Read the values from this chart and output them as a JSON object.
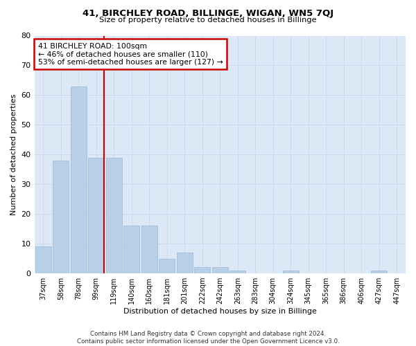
{
  "title1": "41, BIRCHLEY ROAD, BILLINGE, WIGAN, WN5 7QJ",
  "title2": "Size of property relative to detached houses in Billinge",
  "xlabel": "Distribution of detached houses by size in Billinge",
  "ylabel": "Number of detached properties",
  "categories": [
    "37sqm",
    "58sqm",
    "78sqm",
    "99sqm",
    "119sqm",
    "140sqm",
    "160sqm",
    "181sqm",
    "201sqm",
    "222sqm",
    "242sqm",
    "263sqm",
    "283sqm",
    "304sqm",
    "324sqm",
    "345sqm",
    "365sqm",
    "386sqm",
    "406sqm",
    "427sqm",
    "447sqm"
  ],
  "values": [
    9,
    38,
    63,
    39,
    39,
    16,
    16,
    5,
    7,
    2,
    2,
    1,
    0,
    0,
    1,
    0,
    0,
    0,
    0,
    1,
    0
  ],
  "bar_color": "#b8cfe8",
  "bar_edge_color": "#9ab8d8",
  "vline_color": "#cc0000",
  "annotation_text": "41 BIRCHLEY ROAD: 100sqm\n← 46% of detached houses are smaller (110)\n53% of semi-detached houses are larger (127) →",
  "annotation_box_facecolor": "#ffffff",
  "annotation_box_edge_color": "#cc0000",
  "ylim": [
    0,
    80
  ],
  "yticks": [
    0,
    10,
    20,
    30,
    40,
    50,
    60,
    70,
    80
  ],
  "grid_color": "#ccd8ec",
  "bg_color": "#dce8f5",
  "fig_facecolor": "#ffffff",
  "footer": "Contains HM Land Registry data © Crown copyright and database right 2024.\nContains public sector information licensed under the Open Government Licence v3.0."
}
